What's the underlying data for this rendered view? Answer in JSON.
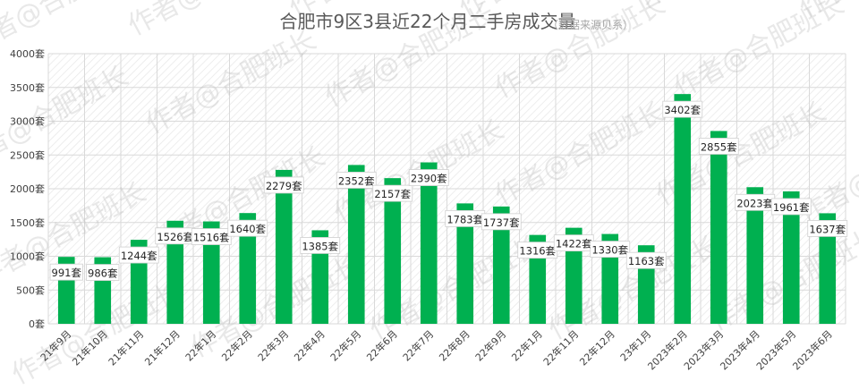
{
  "chart_data": {
    "type": "bar",
    "title": "合肥市9区3县近22个月二手房成交量",
    "subtitle": "（数据来源贝系）",
    "watermark": "作者@合肥班长",
    "ylim": [
      0,
      4000
    ],
    "yticks": [
      "0套",
      "500套",
      "1000套",
      "1500套",
      "2000套",
      "2500套",
      "3000套",
      "3500套",
      "4000套"
    ],
    "ytick_values": [
      0,
      500,
      1000,
      1500,
      2000,
      2500,
      3000,
      3500,
      4000
    ],
    "categories": [
      "21年9月",
      "21年10月",
      "21年11月",
      "21年12月",
      "22年1月",
      "22年2月",
      "22年3月",
      "22年4月",
      "22年5月",
      "22年6月",
      "22年7月",
      "22年8月",
      "22年9月",
      "22年1月",
      "22年11月",
      "22年12月",
      "23年1月",
      "2023年2月",
      "2023年3月",
      "2023年4月",
      "2023年5月",
      "2023年6月"
    ],
    "values": [
      991,
      986,
      1244,
      1526,
      1516,
      1640,
      2279,
      1385,
      2352,
      2157,
      2390,
      1783,
      1737,
      1316,
      1422,
      1330,
      1163,
      3402,
      2855,
      2023,
      1961,
      1637
    ],
    "data_labels": [
      "991套",
      "986套",
      "1244套",
      "1526套",
      "1516套",
      "1640套",
      "2279套",
      "1385套",
      "2352套",
      "2157套",
      "2390套",
      "1783套",
      "1737套",
      "1316套",
      "1422套",
      "1330套",
      "1163套",
      "3402套",
      "2855套",
      "2023套",
      "1961套",
      "1637套"
    ],
    "grid": true,
    "colors": {
      "bar": "#00b050",
      "grid": "#d9d9d9",
      "hatch": "#e7e7e7"
    }
  }
}
